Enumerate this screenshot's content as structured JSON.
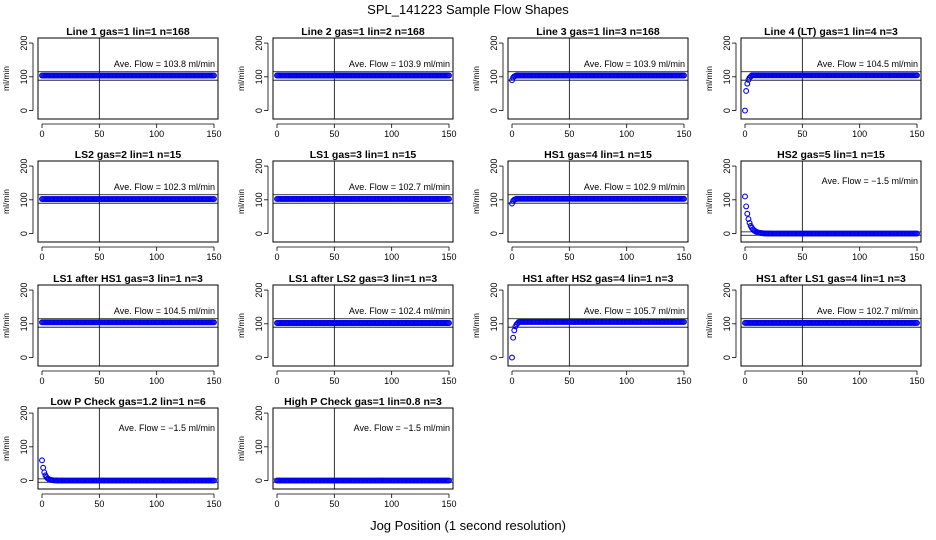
{
  "figure": {
    "title": "SPL_141223  Sample Flow Shapes",
    "xlabel": "Jog Position (1 second resolution)",
    "ylabel": "ml/min",
    "flow_prefix": "Ave. Flow = ",
    "flow_unit": "ml/min",
    "colors": {
      "points": "#0000ee",
      "axes": "#000000",
      "lines": "#000000"
    }
  },
  "chart_data": [
    {
      "type": "scatter",
      "title": "Line 1 gas=1 lin=1 n=168",
      "ave_flow": "103.8",
      "shape": "flat",
      "level": 103.8,
      "xlim": [
        0,
        150
      ],
      "ylim": [
        -25,
        215
      ],
      "xticks": [
        0,
        50,
        100,
        150
      ],
      "yticks": [
        0,
        100,
        200
      ],
      "hlines": [
        90,
        115
      ],
      "vline": 50
    },
    {
      "type": "scatter",
      "title": "Line 2 gas=1 lin=2 n=168",
      "ave_flow": "103.9",
      "shape": "flat",
      "level": 103.9,
      "xlim": [
        0,
        150
      ],
      "ylim": [
        -25,
        215
      ],
      "xticks": [
        0,
        50,
        100,
        150
      ],
      "yticks": [
        0,
        100,
        200
      ],
      "hlines": [
        90,
        115
      ],
      "vline": 50
    },
    {
      "type": "scatter",
      "title": "Line 3 gas=1 lin=3 n=168",
      "ave_flow": "103.9",
      "shape": "rise-small",
      "level": 103.9,
      "xlim": [
        0,
        150
      ],
      "ylim": [
        -25,
        215
      ],
      "xticks": [
        0,
        50,
        100,
        150
      ],
      "yticks": [
        0,
        100,
        200
      ],
      "hlines": [
        90,
        115
      ],
      "vline": 50
    },
    {
      "type": "scatter",
      "title": "Line 4 (LT) gas=1 lin=4 n=3",
      "ave_flow": "104.5",
      "shape": "rise",
      "level": 104.5,
      "xlim": [
        0,
        150
      ],
      "ylim": [
        -25,
        215
      ],
      "xticks": [
        0,
        50,
        100,
        150
      ],
      "yticks": [
        0,
        100,
        200
      ],
      "hlines": [
        90,
        115
      ],
      "vline": 50
    },
    {
      "type": "scatter",
      "title": "LS2 gas=2 lin=1 n=15",
      "ave_flow": "102.3",
      "shape": "flat",
      "level": 102.3,
      "xlim": [
        0,
        150
      ],
      "ylim": [
        -25,
        215
      ],
      "xticks": [
        0,
        50,
        100,
        150
      ],
      "yticks": [
        0,
        100,
        200
      ],
      "hlines": [
        90,
        115
      ],
      "vline": 50
    },
    {
      "type": "scatter",
      "title": "LS1 gas=3 lin=1 n=15",
      "ave_flow": "102.7",
      "shape": "flat",
      "level": 102.7,
      "xlim": [
        0,
        150
      ],
      "ylim": [
        -25,
        215
      ],
      "xticks": [
        0,
        50,
        100,
        150
      ],
      "yticks": [
        0,
        100,
        200
      ],
      "hlines": [
        90,
        115
      ],
      "vline": 50
    },
    {
      "type": "scatter",
      "title": "HS1 gas=4 lin=1 n=15",
      "ave_flow": "102.9",
      "shape": "rise-small",
      "level": 102.9,
      "xlim": [
        0,
        150
      ],
      "ylim": [
        -25,
        215
      ],
      "xticks": [
        0,
        50,
        100,
        150
      ],
      "yticks": [
        0,
        100,
        200
      ],
      "hlines": [
        90,
        115
      ],
      "vline": 50
    },
    {
      "type": "scatter",
      "title": "HS2 gas=5 lin=1 n=15",
      "ave_flow": "−1.5",
      "shape": "decay",
      "level": 0,
      "xlim": [
        0,
        150
      ],
      "ylim": [
        -25,
        215
      ],
      "xticks": [
        0,
        50,
        100,
        150
      ],
      "yticks": [
        0,
        100,
        200
      ],
      "hlines": [
        -5,
        5
      ],
      "vline": 50
    },
    {
      "type": "scatter",
      "title": "LS1 after HS1 gas=3 lin=1 n=3",
      "ave_flow": "104.5",
      "shape": "flat",
      "level": 104.5,
      "xlim": [
        0,
        150
      ],
      "ylim": [
        -25,
        215
      ],
      "xticks": [
        0,
        50,
        100,
        150
      ],
      "yticks": [
        0,
        100,
        200
      ],
      "hlines": [
        90,
        115
      ],
      "vline": 50
    },
    {
      "type": "scatter",
      "title": "LS1 after LS2 gas=3 lin=1 n=3",
      "ave_flow": "102.4",
      "shape": "flat",
      "level": 102.4,
      "xlim": [
        0,
        150
      ],
      "ylim": [
        -25,
        215
      ],
      "xticks": [
        0,
        50,
        100,
        150
      ],
      "yticks": [
        0,
        100,
        200
      ],
      "hlines": [
        90,
        115
      ],
      "vline": 50
    },
    {
      "type": "scatter",
      "title": "HS1 after HS2 gas=4 lin=1 n=3",
      "ave_flow": "105.7",
      "shape": "rise",
      "level": 105.7,
      "xlim": [
        0,
        150
      ],
      "ylim": [
        -25,
        215
      ],
      "xticks": [
        0,
        50,
        100,
        150
      ],
      "yticks": [
        0,
        100,
        200
      ],
      "hlines": [
        90,
        115
      ],
      "vline": 50
    },
    {
      "type": "scatter",
      "title": "HS1 after LS1 gas=4 lin=1 n=3",
      "ave_flow": "102.7",
      "shape": "flat",
      "level": 102.7,
      "xlim": [
        0,
        150
      ],
      "ylim": [
        -25,
        215
      ],
      "xticks": [
        0,
        50,
        100,
        150
      ],
      "yticks": [
        0,
        100,
        200
      ],
      "hlines": [
        90,
        115
      ],
      "vline": 50
    },
    {
      "type": "scatter",
      "title": "Low P Check gas=1.2 lin=1 n=6",
      "ave_flow": "−1.5",
      "shape": "decay-low",
      "level": 0,
      "xlim": [
        0,
        150
      ],
      "ylim": [
        -25,
        215
      ],
      "xticks": [
        0,
        50,
        100,
        150
      ],
      "yticks": [
        0,
        100,
        200
      ],
      "hlines": [
        -5,
        5
      ],
      "vline": 50
    },
    {
      "type": "scatter",
      "title": "High P Check gas=1 lin=0.8 n=3",
      "ave_flow": "−1.5",
      "shape": "flat",
      "level": 0,
      "xlim": [
        0,
        150
      ],
      "ylim": [
        -25,
        215
      ],
      "xticks": [
        0,
        50,
        100,
        150
      ],
      "yticks": [
        0,
        100,
        200
      ],
      "hlines": [
        -5,
        5
      ],
      "vline": 50
    }
  ]
}
